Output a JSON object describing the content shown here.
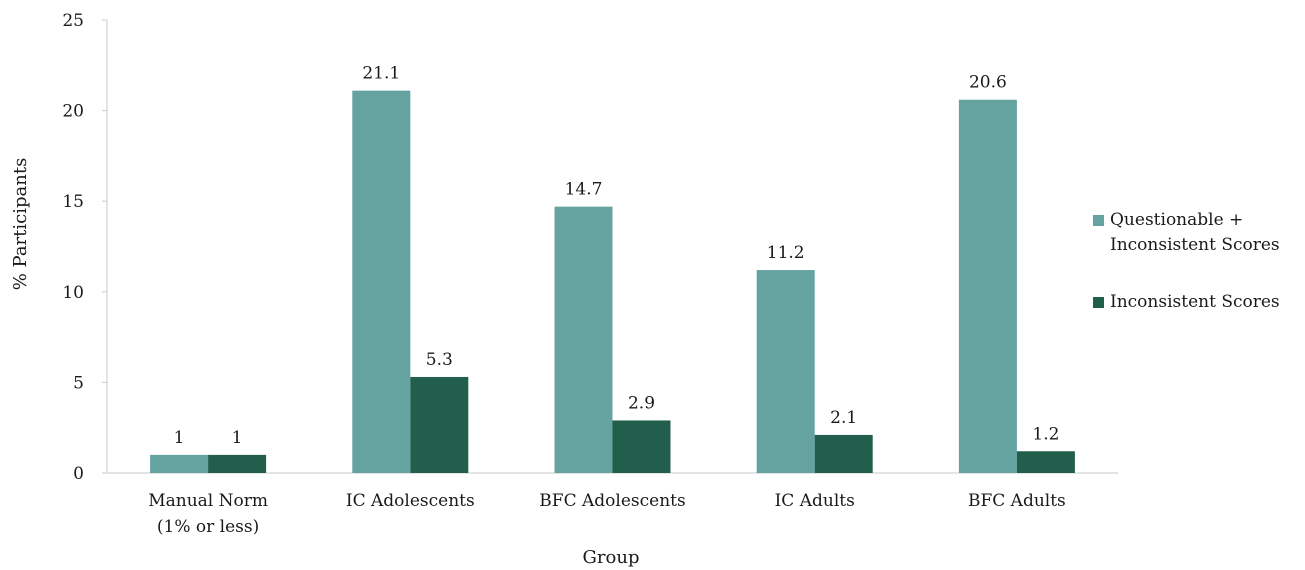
{
  "chart_data": {
    "type": "bar",
    "categories": [
      "Manual Norm\n(1% or less)",
      "IC Adolescents",
      "BFC Adolescents",
      "IC Adults",
      "BFC Adults"
    ],
    "series": [
      {
        "name": "Questionable +\nInconsistent Scores",
        "values": [
          1,
          21.1,
          14.7,
          11.2,
          20.6
        ],
        "labels": [
          "1",
          "21.1",
          "14.7",
          "11.2",
          "20.6"
        ],
        "color": "#64a3a0"
      },
      {
        "name": "Inconsistent Scores",
        "values": [
          1,
          5.3,
          2.9,
          2.1,
          1.2
        ],
        "labels": [
          "1",
          "5.3",
          "2.9",
          "2.1",
          "1.2"
        ],
        "color": "#225e4c"
      }
    ],
    "xlabel": "Group",
    "ylabel": "% Participants",
    "ylim": [
      0,
      25
    ],
    "yticks": [
      0,
      5,
      10,
      15,
      20,
      25
    ],
    "grid": false,
    "legend_position": "right"
  }
}
